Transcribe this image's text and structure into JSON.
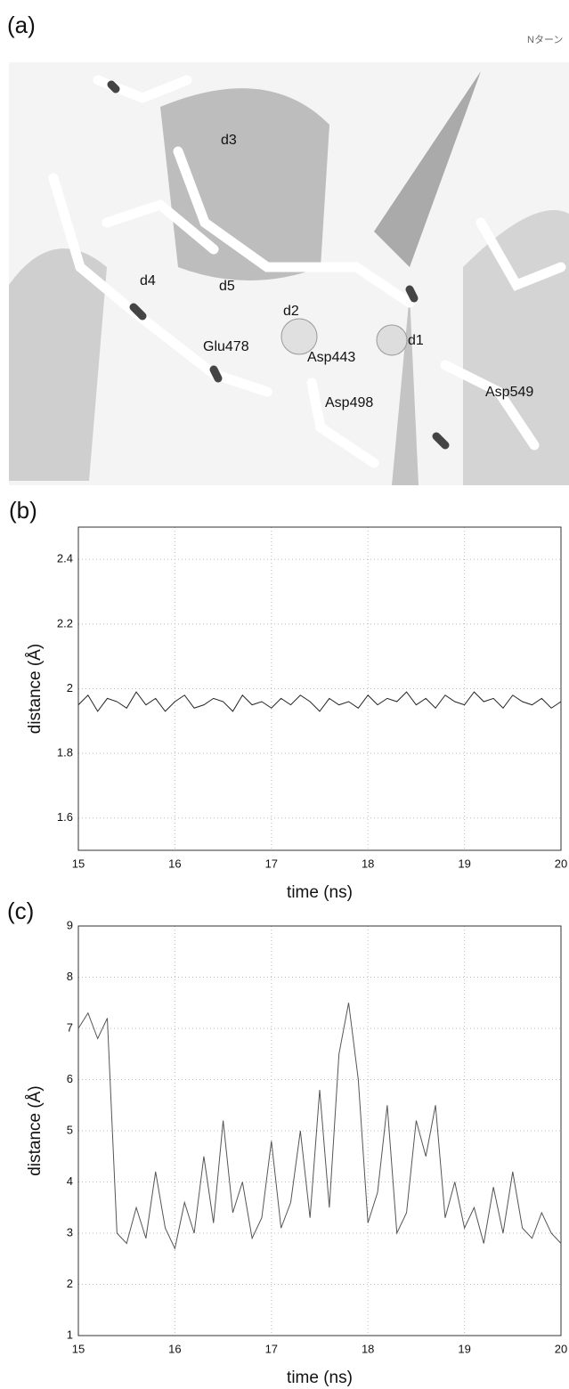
{
  "panels": [
    "(a)",
    "(b)",
    "(c)"
  ],
  "image": {
    "note": "Nターン",
    "labels": [
      "d3",
      "d4",
      "d5",
      "d2",
      "d1",
      "Glu478",
      "Asp443",
      "Asp498",
      "Asp549"
    ]
  },
  "chart_data": [
    {
      "type": "line",
      "xlabel": "time (ns)",
      "ylabel": "distance (Å)",
      "color": "#222",
      "grid": true,
      "xlim": [
        15,
        20
      ],
      "xticks": [
        15,
        16,
        17,
        18,
        19,
        20
      ],
      "ylim": [
        1.5,
        2.5
      ],
      "yticks": [
        1.6,
        1.8,
        2.0,
        2.2,
        2.4
      ],
      "x": [
        15.0,
        15.1,
        15.2,
        15.3,
        15.4,
        15.5,
        15.6,
        15.7,
        15.8,
        15.9,
        16.0,
        16.1,
        16.2,
        16.3,
        16.4,
        16.5,
        16.6,
        16.7,
        16.8,
        16.9,
        17.0,
        17.1,
        17.2,
        17.3,
        17.4,
        17.5,
        17.6,
        17.7,
        17.8,
        17.9,
        18.0,
        18.1,
        18.2,
        18.3,
        18.4,
        18.5,
        18.6,
        18.7,
        18.8,
        18.9,
        19.0,
        19.1,
        19.2,
        19.3,
        19.4,
        19.5,
        19.6,
        19.7,
        19.8,
        19.9,
        20.0
      ],
      "values": [
        1.95,
        1.98,
        1.93,
        1.97,
        1.96,
        1.94,
        1.99,
        1.95,
        1.97,
        1.93,
        1.96,
        1.98,
        1.94,
        1.95,
        1.97,
        1.96,
        1.93,
        1.98,
        1.95,
        1.96,
        1.94,
        1.97,
        1.95,
        1.98,
        1.96,
        1.93,
        1.97,
        1.95,
        1.96,
        1.94,
        1.98,
        1.95,
        1.97,
        1.96,
        1.99,
        1.95,
        1.97,
        1.94,
        1.98,
        1.96,
        1.95,
        1.99,
        1.96,
        1.97,
        1.94,
        1.98,
        1.96,
        1.95,
        1.97,
        1.94,
        1.96
      ]
    },
    {
      "type": "line",
      "xlabel": "time (ns)",
      "ylabel": "distance (Å)",
      "color": "#555",
      "grid": true,
      "xlim": [
        15,
        20
      ],
      "xticks": [
        15,
        16,
        17,
        18,
        19,
        20
      ],
      "ylim": [
        1,
        9
      ],
      "yticks": [
        1,
        2,
        3,
        4,
        5,
        6,
        7,
        8,
        9
      ],
      "x": [
        15.0,
        15.1,
        15.2,
        15.3,
        15.4,
        15.5,
        15.6,
        15.7,
        15.8,
        15.9,
        16.0,
        16.1,
        16.2,
        16.3,
        16.4,
        16.5,
        16.6,
        16.7,
        16.8,
        16.9,
        17.0,
        17.1,
        17.2,
        17.3,
        17.4,
        17.5,
        17.6,
        17.7,
        17.8,
        17.9,
        18.0,
        18.1,
        18.2,
        18.3,
        18.4,
        18.5,
        18.6,
        18.7,
        18.8,
        18.9,
        19.0,
        19.1,
        19.2,
        19.3,
        19.4,
        19.5,
        19.6,
        19.7,
        19.8,
        19.9,
        20.0
      ],
      "values": [
        7.0,
        7.3,
        6.8,
        7.2,
        3.0,
        2.8,
        3.5,
        2.9,
        4.2,
        3.1,
        2.7,
        3.6,
        3.0,
        4.5,
        3.2,
        5.2,
        3.4,
        4.0,
        2.9,
        3.3,
        4.8,
        3.1,
        3.6,
        5.0,
        3.3,
        5.8,
        3.5,
        6.5,
        7.5,
        6.0,
        3.2,
        3.8,
        5.5,
        3.0,
        3.4,
        5.2,
        4.5,
        5.5,
        3.3,
        4.0,
        3.1,
        3.5,
        2.8,
        3.9,
        3.0,
        4.2,
        3.1,
        2.9,
        3.4,
        3.0,
        2.8
      ]
    }
  ]
}
